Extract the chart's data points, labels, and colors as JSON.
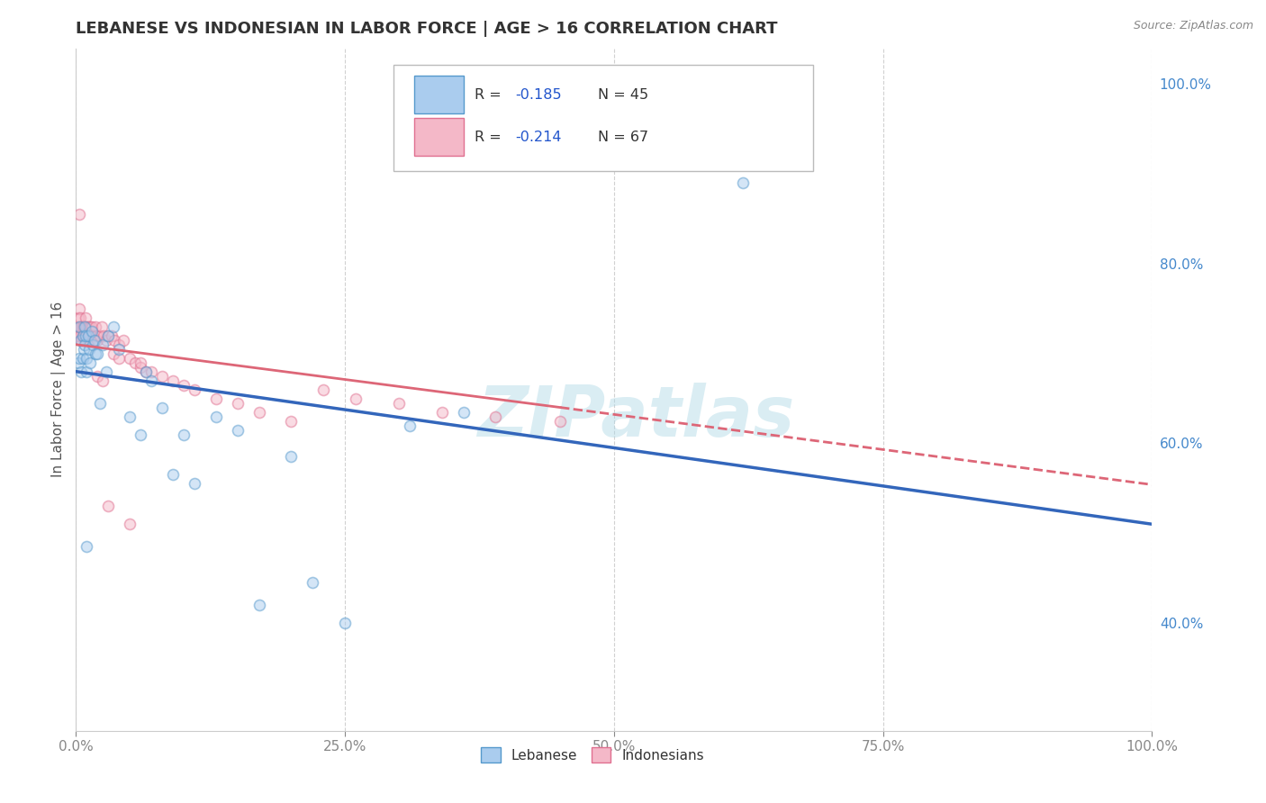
{
  "title": "LEBANESE VS INDONESIAN IN LABOR FORCE | AGE > 16 CORRELATION CHART",
  "source_text": "Source: ZipAtlas.com",
  "ylabel": "In Labor Force | Age > 16",
  "xlim": [
    0,
    1.0
  ],
  "ylim": [
    0.28,
    1.04
  ],
  "xticks": [
    0.0,
    0.25,
    0.5,
    0.75,
    1.0
  ],
  "xticklabels": [
    "0.0%",
    "25.0%",
    "50.0%",
    "75.0%",
    "100.0%"
  ],
  "yticks_right": [
    0.4,
    0.6,
    0.8,
    1.0
  ],
  "yticklabels_right": [
    "40.0%",
    "60.0%",
    "80.0%",
    "100.0%"
  ],
  "watermark": "ZIPatlas",
  "legend_r_lebanese": "-0.185",
  "legend_n_lebanese": "45",
  "legend_r_indonesian": "-0.214",
  "legend_n_indonesian": "67",
  "lebanese_color": "#aaccee",
  "indonesian_color": "#f4b8c8",
  "lebanese_edge": "#5599cc",
  "indonesian_edge": "#e07090",
  "trend_lebanese_color": "#3366bb",
  "trend_indonesian_color": "#dd6677",
  "lebanese_scatter_x": [
    0.002,
    0.003,
    0.003,
    0.004,
    0.005,
    0.006,
    0.006,
    0.007,
    0.008,
    0.008,
    0.009,
    0.01,
    0.01,
    0.011,
    0.012,
    0.013,
    0.015,
    0.016,
    0.017,
    0.018,
    0.02,
    0.022,
    0.025,
    0.028,
    0.03,
    0.035,
    0.04,
    0.05,
    0.06,
    0.065,
    0.07,
    0.08,
    0.09,
    0.1,
    0.11,
    0.13,
    0.15,
    0.17,
    0.2,
    0.22,
    0.25,
    0.31,
    0.36,
    0.62,
    0.01
  ],
  "lebanese_scatter_y": [
    0.69,
    0.73,
    0.695,
    0.715,
    0.68,
    0.72,
    0.695,
    0.705,
    0.73,
    0.71,
    0.72,
    0.68,
    0.695,
    0.72,
    0.705,
    0.69,
    0.725,
    0.71,
    0.715,
    0.7,
    0.7,
    0.645,
    0.71,
    0.68,
    0.72,
    0.73,
    0.705,
    0.63,
    0.61,
    0.68,
    0.67,
    0.64,
    0.565,
    0.61,
    0.555,
    0.63,
    0.615,
    0.42,
    0.585,
    0.445,
    0.4,
    0.62,
    0.635,
    0.89,
    0.485
  ],
  "indonesian_scatter_x": [
    0.001,
    0.002,
    0.002,
    0.003,
    0.003,
    0.004,
    0.004,
    0.005,
    0.005,
    0.006,
    0.006,
    0.007,
    0.007,
    0.008,
    0.008,
    0.009,
    0.009,
    0.01,
    0.01,
    0.011,
    0.011,
    0.012,
    0.012,
    0.013,
    0.014,
    0.015,
    0.016,
    0.017,
    0.018,
    0.019,
    0.02,
    0.022,
    0.024,
    0.026,
    0.028,
    0.03,
    0.033,
    0.036,
    0.04,
    0.044,
    0.05,
    0.055,
    0.06,
    0.065,
    0.07,
    0.08,
    0.09,
    0.1,
    0.11,
    0.13,
    0.15,
    0.17,
    0.2,
    0.23,
    0.26,
    0.3,
    0.34,
    0.39,
    0.45,
    0.02,
    0.025,
    0.03,
    0.035,
    0.04,
    0.05,
    0.06,
    0.003
  ],
  "indonesian_scatter_y": [
    0.72,
    0.74,
    0.72,
    0.75,
    0.73,
    0.74,
    0.72,
    0.73,
    0.715,
    0.73,
    0.72,
    0.73,
    0.72,
    0.72,
    0.73,
    0.74,
    0.715,
    0.73,
    0.72,
    0.73,
    0.72,
    0.72,
    0.715,
    0.73,
    0.72,
    0.73,
    0.72,
    0.715,
    0.73,
    0.72,
    0.715,
    0.72,
    0.73,
    0.72,
    0.715,
    0.72,
    0.72,
    0.715,
    0.71,
    0.715,
    0.695,
    0.69,
    0.685,
    0.68,
    0.68,
    0.675,
    0.67,
    0.665,
    0.66,
    0.65,
    0.645,
    0.635,
    0.625,
    0.66,
    0.65,
    0.645,
    0.635,
    0.63,
    0.625,
    0.675,
    0.67,
    0.53,
    0.7,
    0.695,
    0.51,
    0.69,
    0.855
  ],
  "lebanese_trend_x0": 0.0,
  "lebanese_trend_y0": 0.68,
  "lebanese_trend_x1": 1.0,
  "lebanese_trend_y1": 0.51,
  "indonesian_trend_solid_x0": 0.0,
  "indonesian_trend_solid_y0": 0.71,
  "indonesian_trend_solid_x1": 0.45,
  "indonesian_trend_solid_y1": 0.64,
  "indonesian_trend_dash_x0": 0.45,
  "indonesian_trend_dash_y0": 0.64,
  "indonesian_trend_dash_x1": 1.0,
  "indonesian_trend_dash_y1": 0.554,
  "background_color": "#ffffff",
  "grid_color": "#cccccc",
  "title_fontsize": 13,
  "axis_label_fontsize": 11,
  "tick_fontsize": 11,
  "marker_size": 75,
  "marker_alpha": 0.5,
  "legend_r_color": "#2255cc",
  "tick_color_x": "#888888",
  "tick_color_y": "#4488cc"
}
